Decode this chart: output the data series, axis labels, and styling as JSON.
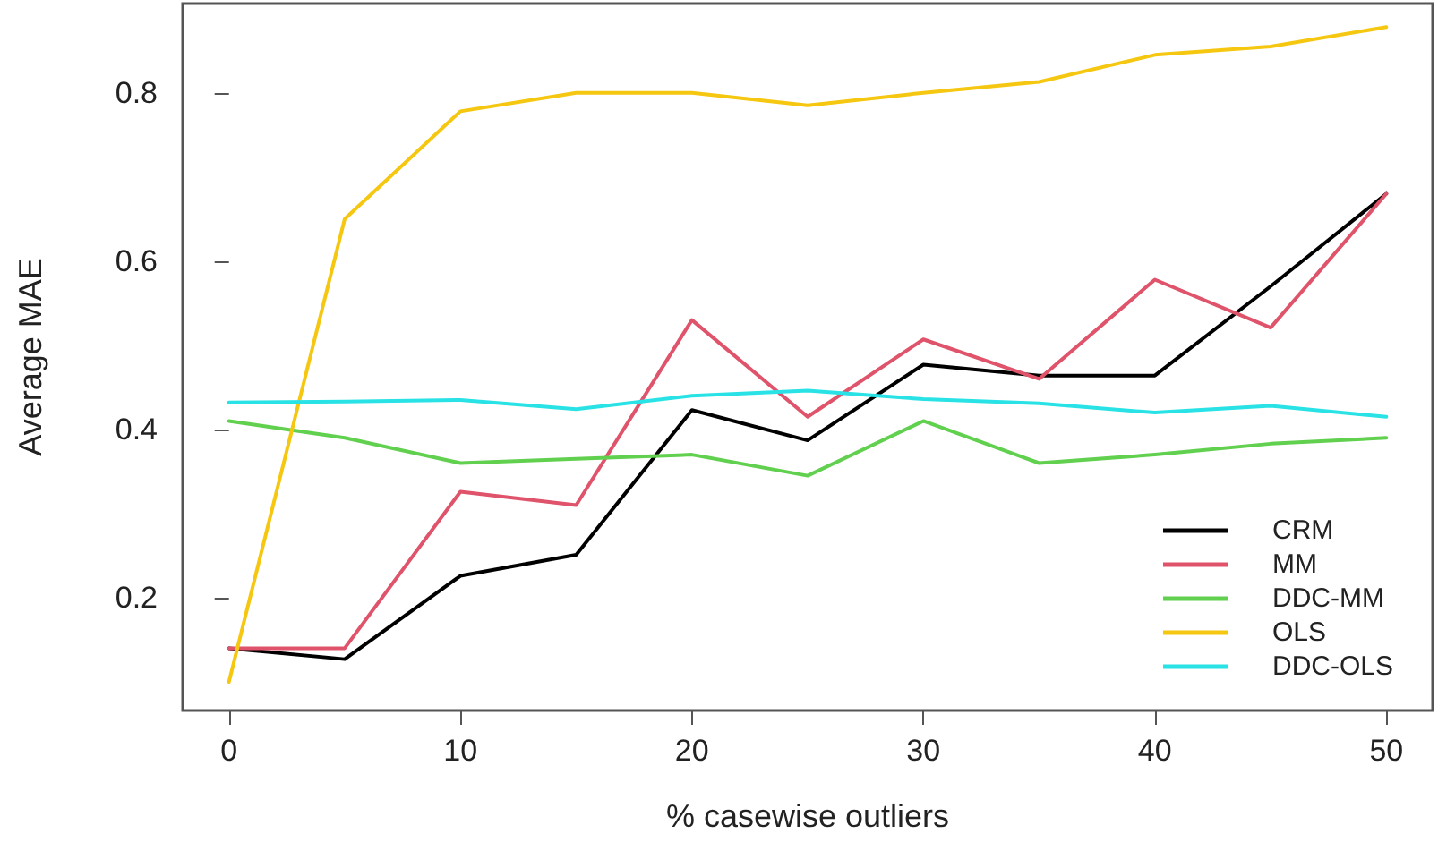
{
  "chart_data": {
    "type": "line",
    "xlabel": "% casewise outliers",
    "ylabel": "Average MAE",
    "x": [
      0,
      5,
      10,
      15,
      20,
      25,
      30,
      35,
      40,
      45,
      50
    ],
    "series": [
      {
        "name": "CRM",
        "color": "#000000",
        "values": [
          0.14,
          0.127,
          0.226,
          0.251,
          0.423,
          0.387,
          0.477,
          0.464,
          0.464,
          0.57,
          0.68
        ]
      },
      {
        "name": "MM",
        "color": "#df536b",
        "values": [
          0.14,
          0.14,
          0.326,
          0.31,
          0.53,
          0.415,
          0.507,
          0.46,
          0.578,
          0.521,
          0.68
        ]
      },
      {
        "name": "DDC-MM",
        "color": "#61d04f",
        "values": [
          0.41,
          0.39,
          0.36,
          0.365,
          0.37,
          0.345,
          0.41,
          0.36,
          0.37,
          0.383,
          0.39
        ]
      },
      {
        "name": "OLS",
        "color": "#f5c710",
        "values": [
          0.1,
          0.65,
          0.778,
          0.8,
          0.8,
          0.785,
          0.8,
          0.813,
          0.845,
          0.855,
          0.878
        ]
      },
      {
        "name": "DDC-OLS",
        "color": "#28e2e5",
        "values": [
          0.432,
          0.433,
          0.435,
          0.424,
          0.44,
          0.446,
          0.436,
          0.431,
          0.42,
          0.428,
          0.415
        ]
      }
    ],
    "xlim": [
      -2,
      52
    ],
    "xticks": [
      0,
      10,
      20,
      30,
      40,
      50
    ],
    "ylim": [
      0.066,
      0.906
    ],
    "yticks": [
      0.2,
      0.4,
      0.6,
      0.8
    ],
    "grid": false,
    "legend": "bottom right",
    "marker": "none",
    "line_style": "solid"
  }
}
